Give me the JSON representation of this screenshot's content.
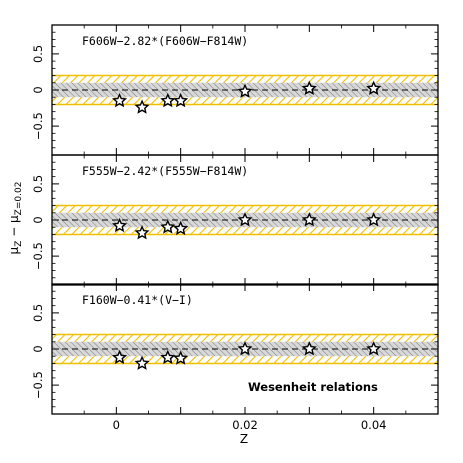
{
  "chart_data": {
    "type": "scatter",
    "layout": "three vertically stacked panels sharing the x axis",
    "xlabel": "Z",
    "ylabel": "μZ − μZ=0.02",
    "ylabel_main": "μ",
    "ylabel_main_sub": "Z",
    "ylabel_ref": "μ",
    "ylabel_ref_sub": "Z=0.02",
    "xlim": [
      -0.01,
      0.05
    ],
    "ylim": [
      -0.9,
      0.9
    ],
    "xticks": [
      0,
      0.02,
      0.04
    ],
    "xtick_labels": [
      "0",
      "0.02",
      "0.04"
    ],
    "yticks": [
      -0.5,
      0,
      0.5
    ],
    "ytick_labels": [
      "−0.5",
      "0",
      "0.5"
    ],
    "reference_line": {
      "y": 0,
      "style": "dashed"
    },
    "bands": [
      {
        "name": "inner",
        "y_range": [
          -0.1,
          0.1
        ],
        "fill": "#d8d8d8",
        "hatch_color": "#7a7a7a"
      },
      {
        "name": "outer",
        "y_range": [
          -0.2,
          0.2
        ],
        "fill": "#ffffff",
        "hatch_color": "#f0c000"
      }
    ],
    "marker": "star",
    "annotation": "Wesenheit relations",
    "panels": [
      {
        "label": "F606W−2.82*(F606W−F814W)",
        "points": [
          {
            "x": 0.0005,
            "y": -0.15
          },
          {
            "x": 0.004,
            "y": -0.24
          },
          {
            "x": 0.008,
            "y": -0.15
          },
          {
            "x": 0.01,
            "y": -0.15
          },
          {
            "x": 0.02,
            "y": -0.02
          },
          {
            "x": 0.03,
            "y": 0.02
          },
          {
            "x": 0.04,
            "y": 0.02
          }
        ]
      },
      {
        "label": "F555W−2.42*(F555W−F814W)",
        "points": [
          {
            "x": 0.0005,
            "y": -0.08
          },
          {
            "x": 0.004,
            "y": -0.18
          },
          {
            "x": 0.008,
            "y": -0.1
          },
          {
            "x": 0.01,
            "y": -0.12
          },
          {
            "x": 0.02,
            "y": 0.0
          },
          {
            "x": 0.03,
            "y": 0.0
          },
          {
            "x": 0.04,
            "y": 0.0
          }
        ]
      },
      {
        "label": "F160W−0.41*(V−I)",
        "points": [
          {
            "x": 0.0005,
            "y": -0.12
          },
          {
            "x": 0.004,
            "y": -0.2
          },
          {
            "x": 0.008,
            "y": -0.12
          },
          {
            "x": 0.01,
            "y": -0.13
          },
          {
            "x": 0.02,
            "y": 0.0
          },
          {
            "x": 0.03,
            "y": 0.0
          },
          {
            "x": 0.04,
            "y": 0.0
          }
        ]
      }
    ],
    "colors": {
      "axes": "#000000",
      "outer_band_border": "#f0c000",
      "marker_face": "#ffffff",
      "marker_edge": "#000000"
    }
  }
}
